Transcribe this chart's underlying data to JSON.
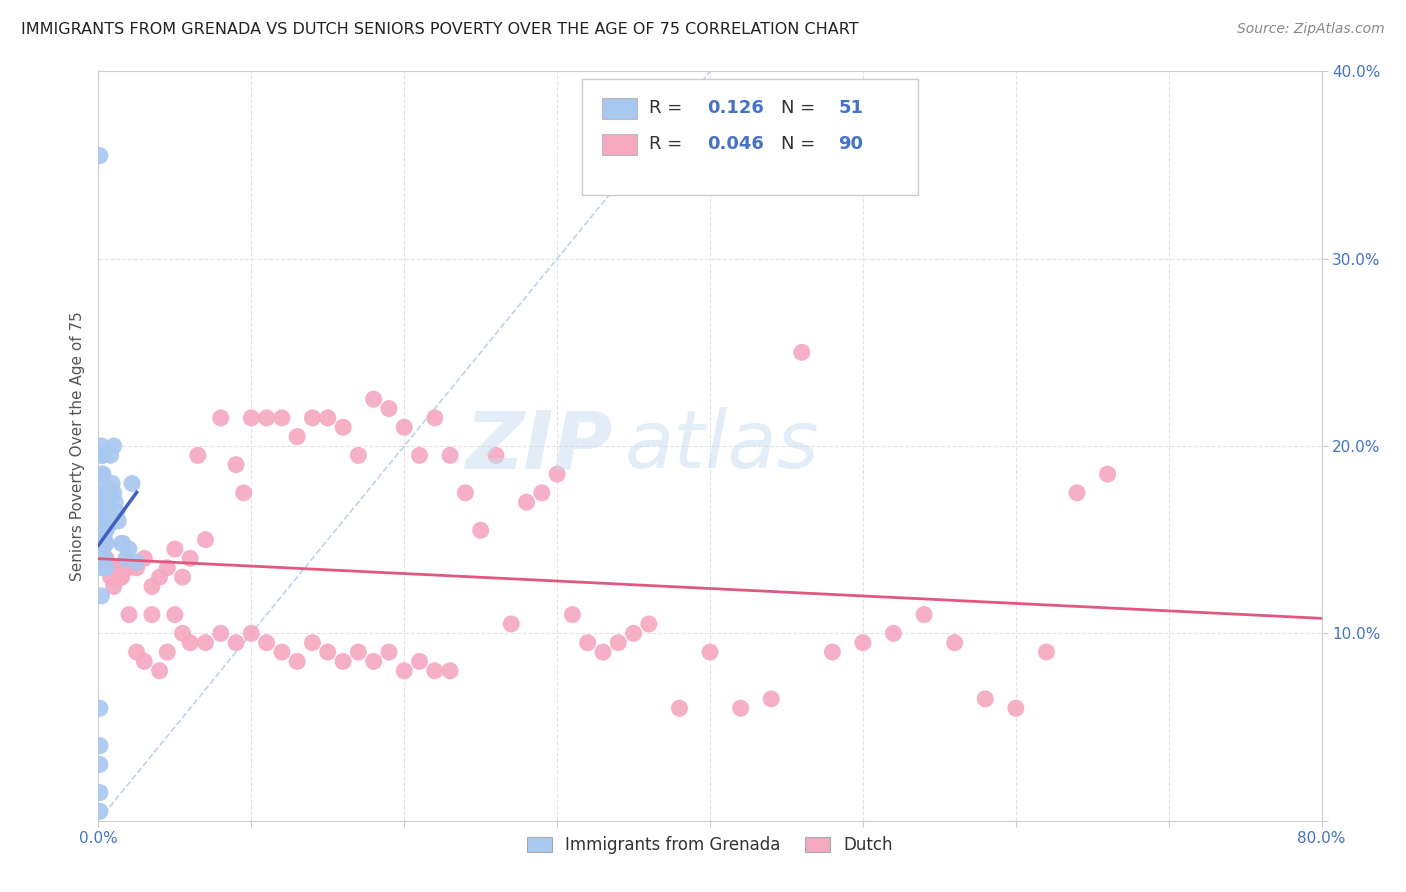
{
  "title": "IMMIGRANTS FROM GRENADA VS DUTCH SENIORS POVERTY OVER THE AGE OF 75 CORRELATION CHART",
  "source": "Source: ZipAtlas.com",
  "ylabel": "Seniors Poverty Over the Age of 75",
  "xlim": [
    0,
    0.8
  ],
  "ylim": [
    0,
    0.4
  ],
  "grenada_R": 0.126,
  "grenada_N": 51,
  "dutch_R": 0.046,
  "dutch_N": 90,
  "grenada_color": "#a8c8f0",
  "dutch_color": "#f5a8c0",
  "grenada_line_color": "#4060c0",
  "dutch_line_color": "#e05880",
  "background_color": "#ffffff",
  "watermark_zip": "ZIP",
  "watermark_atlas": "atlas",
  "legend_labels": [
    "Immigrants from Grenada",
    "Dutch"
  ],
  "grenada_x": [
    0.001,
    0.001,
    0.001,
    0.001,
    0.001,
    0.002,
    0.002,
    0.002,
    0.002,
    0.002,
    0.002,
    0.002,
    0.003,
    0.003,
    0.003,
    0.003,
    0.003,
    0.003,
    0.003,
    0.004,
    0.004,
    0.004,
    0.004,
    0.004,
    0.004,
    0.005,
    0.005,
    0.005,
    0.005,
    0.005,
    0.005,
    0.006,
    0.006,
    0.006,
    0.007,
    0.007,
    0.008,
    0.008,
    0.009,
    0.01,
    0.01,
    0.011,
    0.012,
    0.013,
    0.015,
    0.016,
    0.018,
    0.02,
    0.022,
    0.025,
    0.001
  ],
  "grenada_y": [
    0.355,
    0.06,
    0.04,
    0.03,
    0.015,
    0.2,
    0.195,
    0.185,
    0.155,
    0.145,
    0.135,
    0.12,
    0.195,
    0.185,
    0.18,
    0.165,
    0.16,
    0.15,
    0.145,
    0.175,
    0.17,
    0.165,
    0.155,
    0.15,
    0.14,
    0.175,
    0.168,
    0.16,
    0.155,
    0.148,
    0.135,
    0.175,
    0.168,
    0.16,
    0.168,
    0.158,
    0.195,
    0.175,
    0.18,
    0.2,
    0.175,
    0.17,
    0.165,
    0.16,
    0.148,
    0.148,
    0.14,
    0.145,
    0.18,
    0.138,
    0.005
  ],
  "dutch_x": [
    0.005,
    0.008,
    0.01,
    0.012,
    0.015,
    0.018,
    0.02,
    0.025,
    0.03,
    0.035,
    0.04,
    0.045,
    0.05,
    0.055,
    0.06,
    0.065,
    0.07,
    0.08,
    0.09,
    0.095,
    0.1,
    0.11,
    0.12,
    0.13,
    0.14,
    0.15,
    0.16,
    0.17,
    0.18,
    0.19,
    0.2,
    0.21,
    0.22,
    0.23,
    0.24,
    0.25,
    0.26,
    0.27,
    0.28,
    0.29,
    0.3,
    0.31,
    0.32,
    0.33,
    0.34,
    0.35,
    0.36,
    0.38,
    0.4,
    0.42,
    0.44,
    0.46,
    0.48,
    0.5,
    0.52,
    0.54,
    0.56,
    0.58,
    0.6,
    0.62,
    0.64,
    0.66,
    0.02,
    0.025,
    0.03,
    0.035,
    0.04,
    0.045,
    0.05,
    0.055,
    0.06,
    0.07,
    0.08,
    0.09,
    0.1,
    0.11,
    0.12,
    0.13,
    0.14,
    0.15,
    0.16,
    0.17,
    0.18,
    0.19,
    0.2,
    0.21,
    0.22,
    0.23,
    0.01,
    0.015
  ],
  "dutch_y": [
    0.14,
    0.13,
    0.125,
    0.135,
    0.13,
    0.135,
    0.135,
    0.135,
    0.14,
    0.125,
    0.13,
    0.135,
    0.145,
    0.13,
    0.14,
    0.195,
    0.15,
    0.215,
    0.19,
    0.175,
    0.215,
    0.215,
    0.215,
    0.205,
    0.215,
    0.215,
    0.21,
    0.195,
    0.225,
    0.22,
    0.21,
    0.195,
    0.215,
    0.195,
    0.175,
    0.155,
    0.195,
    0.105,
    0.17,
    0.175,
    0.185,
    0.11,
    0.095,
    0.09,
    0.095,
    0.1,
    0.105,
    0.06,
    0.09,
    0.06,
    0.065,
    0.25,
    0.09,
    0.095,
    0.1,
    0.11,
    0.095,
    0.065,
    0.06,
    0.09,
    0.175,
    0.185,
    0.11,
    0.09,
    0.085,
    0.11,
    0.08,
    0.09,
    0.11,
    0.1,
    0.095,
    0.095,
    0.1,
    0.095,
    0.1,
    0.095,
    0.09,
    0.085,
    0.095,
    0.09,
    0.085,
    0.09,
    0.085,
    0.09,
    0.08,
    0.085,
    0.08,
    0.08,
    0.135,
    0.13
  ]
}
